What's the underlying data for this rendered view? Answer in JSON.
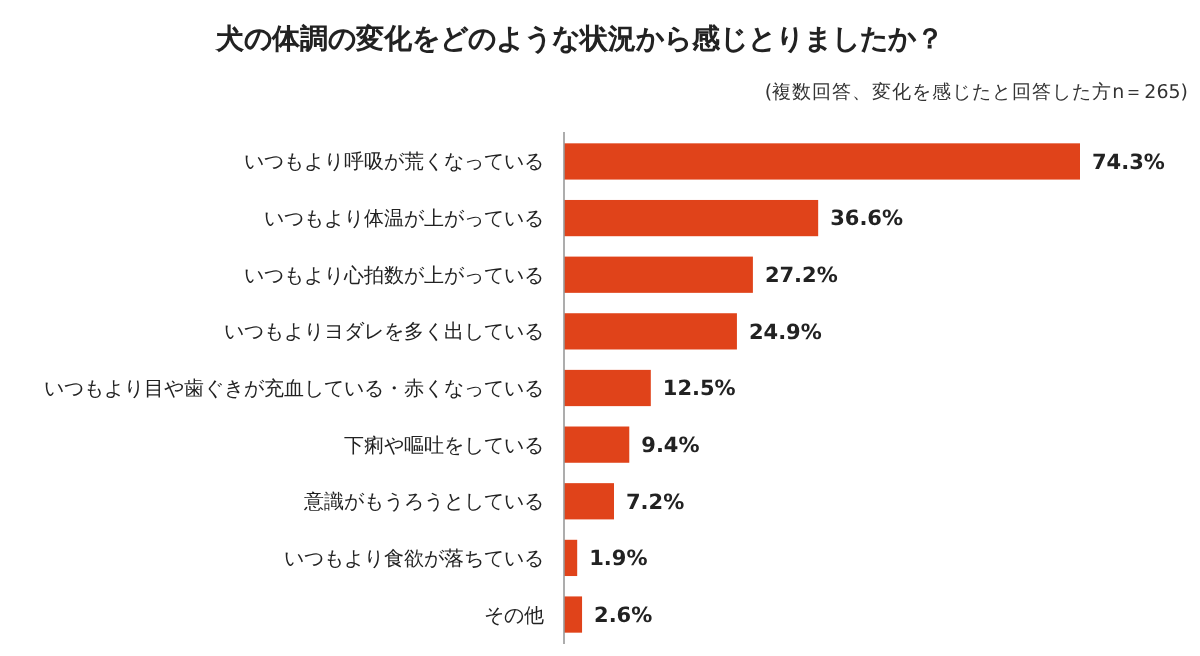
{
  "chart_data": {
    "type": "bar",
    "orientation": "horizontal",
    "title": "犬の体調の変化をどのような状況から感じとりましたか？",
    "subtitle": "(複数回答、変化を感じたと回答した方n＝265)",
    "categories": [
      "いつもより呼吸が荒くなっている",
      "いつもより体温が上がっている",
      "いつもより心拍数が上がっている",
      "いつもよりヨダレを多く出している",
      "いつもより目や歯ぐきが充血している・赤くなっている",
      "下痢や嘔吐をしている",
      "意識がもうろうとしている",
      "いつもより食欲が落ちている",
      "その他"
    ],
    "values": [
      74.3,
      36.6,
      27.2,
      24.9,
      12.5,
      9.4,
      7.2,
      1.9,
      2.6
    ],
    "value_labels": [
      "74.3%",
      "36.6%",
      "27.2%",
      "24.9%",
      "12.5%",
      "9.4%",
      "7.2%",
      "1.9%",
      "2.6%"
    ],
    "color": "#e0431a"
  }
}
